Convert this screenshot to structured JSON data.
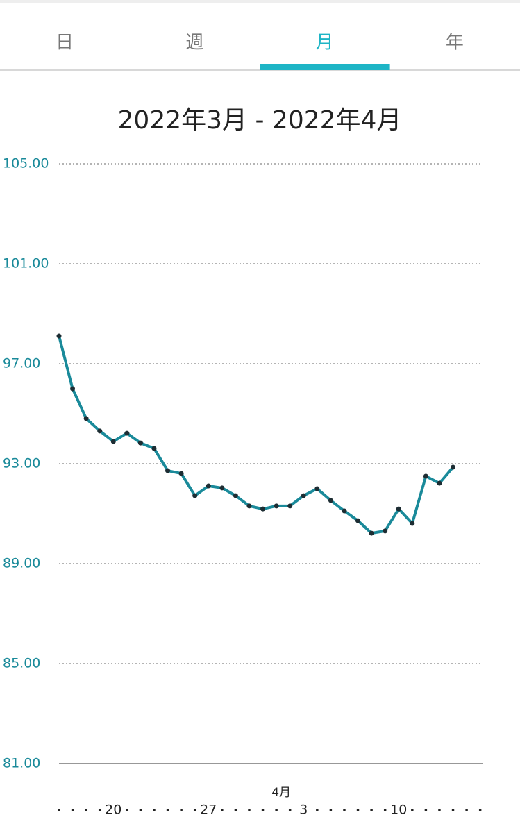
{
  "tabs": [
    {
      "label": "日",
      "active": false
    },
    {
      "label": "週",
      "active": false
    },
    {
      "label": "月",
      "active": true
    },
    {
      "label": "年",
      "active": false
    }
  ],
  "chart_data": {
    "type": "line",
    "title": "2022年3月 - 2022年4月",
    "annotations": [
      "4月"
    ],
    "categories": [
      null,
      null,
      null,
      null,
      "20",
      null,
      null,
      null,
      null,
      null,
      null,
      "27",
      null,
      null,
      null,
      null,
      null,
      null,
      "3",
      null,
      null,
      null,
      null,
      null,
      null,
      "10",
      null,
      null,
      null,
      null,
      null,
      null
    ],
    "series": [
      {
        "color": "#1a8a9a",
        "marker_color": "#1d2d33",
        "values": [
          98.11,
          96.0,
          94.81,
          94.31,
          93.89,
          94.22,
          93.83,
          93.61,
          92.72,
          92.61,
          91.72,
          92.11,
          92.03,
          91.72,
          91.31,
          91.19,
          91.31,
          91.31,
          91.72,
          92.0,
          91.53,
          91.11,
          90.72,
          90.22,
          90.31,
          91.19,
          90.61,
          92.5,
          92.22,
          92.86,
          null,
          null
        ]
      }
    ],
    "ylim": [
      81,
      105
    ],
    "yticks": [
      {
        "value": 81,
        "label": "81.00"
      },
      {
        "value": 85,
        "label": "85.00"
      },
      {
        "value": 89,
        "label": "89.00"
      },
      {
        "value": 93,
        "label": "93.00"
      },
      {
        "value": 97,
        "label": "97.00"
      },
      {
        "value": 101,
        "label": "101.00"
      },
      {
        "value": 105,
        "label": "105.00"
      }
    ],
    "grid": true,
    "axis_color": "#1a8a9a",
    "active_color": "#1eb5c6"
  }
}
